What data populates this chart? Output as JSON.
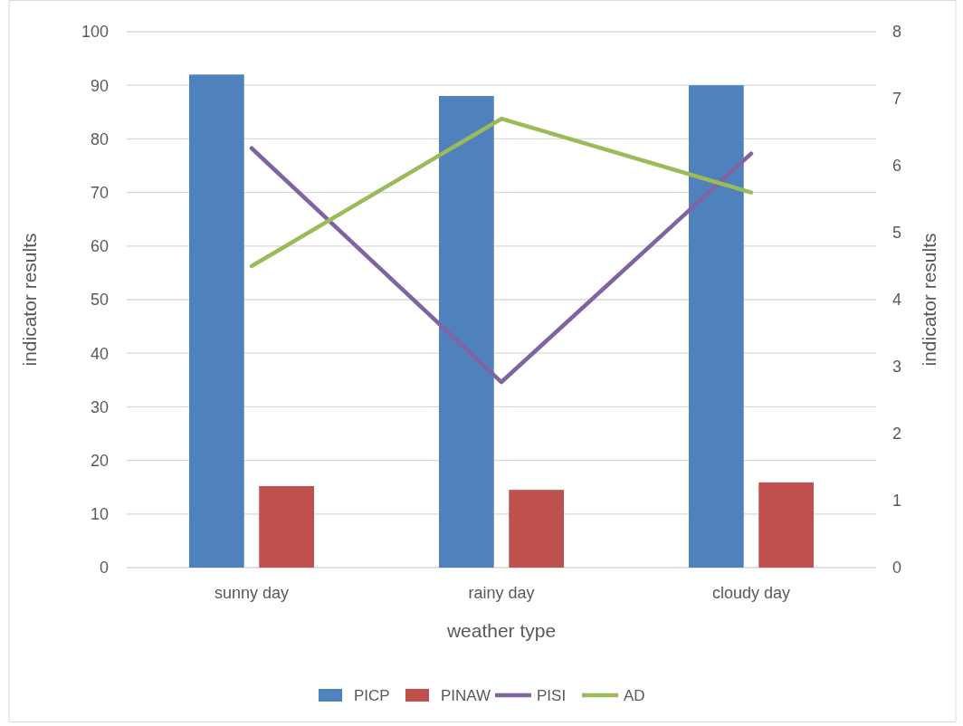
{
  "chart_data": {
    "type": "bar",
    "xlabel": "weather type",
    "ylabel": "indicator results",
    "y2label": "indicator results",
    "categories": [
      "sunny day",
      "rainy day",
      "cloudy day"
    ],
    "series": [
      {
        "name": "PICP",
        "color": "#4f81bd",
        "values": [
          92,
          88,
          90
        ]
      },
      {
        "name": "PINAW",
        "color": "#c0504d",
        "values": [
          15.2,
          14.5,
          15.9
        ]
      },
      {
        "name": "PISI",
        "color": "#8064a2",
        "type": "line",
        "axis": "y2",
        "values": [
          6.26,
          2.77,
          6.18
        ]
      },
      {
        "name": "AD",
        "color": "#9bbb59",
        "type": "line",
        "axis": "y2",
        "values": [
          4.5,
          6.7,
          5.6
        ]
      }
    ],
    "ylim": [
      0,
      100
    ],
    "yticks": [
      0,
      10,
      20,
      30,
      40,
      50,
      60,
      70,
      80,
      90,
      100
    ],
    "y2lim": [
      0,
      8
    ],
    "y2ticks": [
      0,
      1,
      2,
      3,
      4,
      5,
      6,
      7,
      8
    ],
    "grid": "y",
    "legend": "bottom"
  }
}
